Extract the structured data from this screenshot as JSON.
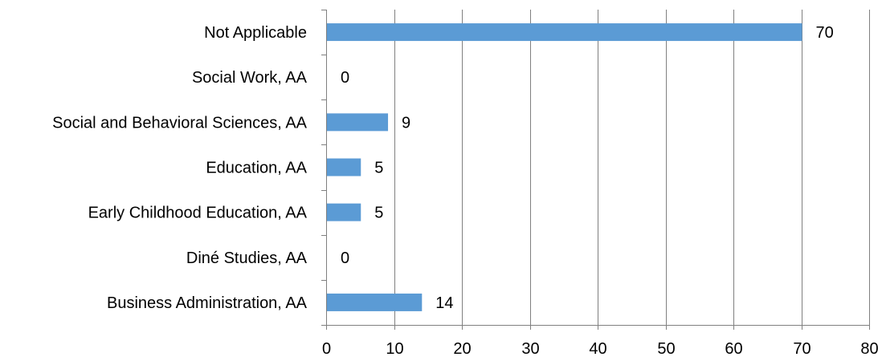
{
  "chart_data": {
    "type": "bar",
    "orientation": "horizontal",
    "categories": [
      "Not Applicable",
      "Social Work, AA",
      "Social and Behavioral Sciences, AA",
      "Education, AA",
      "Early Childhood Education, AA",
      "Diné Studies, AA",
      "Business Administration, AA"
    ],
    "values": [
      70,
      0,
      9,
      5,
      5,
      0,
      14
    ],
    "data_labels": [
      "70",
      "0",
      "9",
      "5",
      "5",
      "0",
      "14"
    ],
    "title": "",
    "xlabel": "",
    "ylabel": "",
    "xlim": [
      0,
      80
    ],
    "xticks": [
      0,
      10,
      20,
      30,
      40,
      50,
      60,
      70,
      80
    ],
    "xtick_labels": [
      "0",
      "10",
      "20",
      "30",
      "40",
      "50",
      "60",
      "70",
      "80"
    ],
    "grid": "vertical",
    "legend": "none",
    "colors": {
      "bar": "#5B9BD5",
      "grid": "#808080",
      "text": "#000000"
    }
  }
}
